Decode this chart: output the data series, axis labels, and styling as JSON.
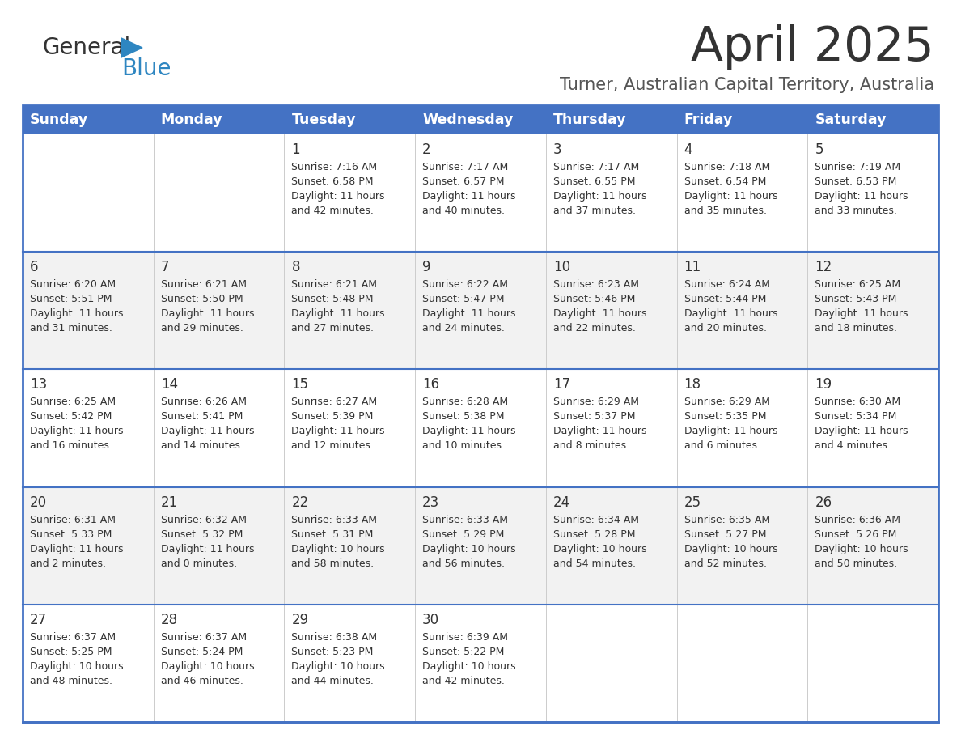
{
  "title": "April 2025",
  "subtitle": "Turner, Australian Capital Territory, Australia",
  "header_color": "#4472C4",
  "header_text_color": "#FFFFFF",
  "row_bg_even": "#FFFFFF",
  "row_bg_odd": "#F2F2F2",
  "border_color": "#4472C4",
  "cell_border_color": "#BBBBBB",
  "days_of_week": [
    "Sunday",
    "Monday",
    "Tuesday",
    "Wednesday",
    "Thursday",
    "Friday",
    "Saturday"
  ],
  "calendar": [
    [
      {
        "day": "",
        "sunrise": "",
        "sunset": "",
        "daylight": ""
      },
      {
        "day": "",
        "sunrise": "",
        "sunset": "",
        "daylight": ""
      },
      {
        "day": "1",
        "sunrise": "Sunrise: 7:16 AM",
        "sunset": "Sunset: 6:58 PM",
        "daylight": "Daylight: 11 hours\nand 42 minutes."
      },
      {
        "day": "2",
        "sunrise": "Sunrise: 7:17 AM",
        "sunset": "Sunset: 6:57 PM",
        "daylight": "Daylight: 11 hours\nand 40 minutes."
      },
      {
        "day": "3",
        "sunrise": "Sunrise: 7:17 AM",
        "sunset": "Sunset: 6:55 PM",
        "daylight": "Daylight: 11 hours\nand 37 minutes."
      },
      {
        "day": "4",
        "sunrise": "Sunrise: 7:18 AM",
        "sunset": "Sunset: 6:54 PM",
        "daylight": "Daylight: 11 hours\nand 35 minutes."
      },
      {
        "day": "5",
        "sunrise": "Sunrise: 7:19 AM",
        "sunset": "Sunset: 6:53 PM",
        "daylight": "Daylight: 11 hours\nand 33 minutes."
      }
    ],
    [
      {
        "day": "6",
        "sunrise": "Sunrise: 6:20 AM",
        "sunset": "Sunset: 5:51 PM",
        "daylight": "Daylight: 11 hours\nand 31 minutes."
      },
      {
        "day": "7",
        "sunrise": "Sunrise: 6:21 AM",
        "sunset": "Sunset: 5:50 PM",
        "daylight": "Daylight: 11 hours\nand 29 minutes."
      },
      {
        "day": "8",
        "sunrise": "Sunrise: 6:21 AM",
        "sunset": "Sunset: 5:48 PM",
        "daylight": "Daylight: 11 hours\nand 27 minutes."
      },
      {
        "day": "9",
        "sunrise": "Sunrise: 6:22 AM",
        "sunset": "Sunset: 5:47 PM",
        "daylight": "Daylight: 11 hours\nand 24 minutes."
      },
      {
        "day": "10",
        "sunrise": "Sunrise: 6:23 AM",
        "sunset": "Sunset: 5:46 PM",
        "daylight": "Daylight: 11 hours\nand 22 minutes."
      },
      {
        "day": "11",
        "sunrise": "Sunrise: 6:24 AM",
        "sunset": "Sunset: 5:44 PM",
        "daylight": "Daylight: 11 hours\nand 20 minutes."
      },
      {
        "day": "12",
        "sunrise": "Sunrise: 6:25 AM",
        "sunset": "Sunset: 5:43 PM",
        "daylight": "Daylight: 11 hours\nand 18 minutes."
      }
    ],
    [
      {
        "day": "13",
        "sunrise": "Sunrise: 6:25 AM",
        "sunset": "Sunset: 5:42 PM",
        "daylight": "Daylight: 11 hours\nand 16 minutes."
      },
      {
        "day": "14",
        "sunrise": "Sunrise: 6:26 AM",
        "sunset": "Sunset: 5:41 PM",
        "daylight": "Daylight: 11 hours\nand 14 minutes."
      },
      {
        "day": "15",
        "sunrise": "Sunrise: 6:27 AM",
        "sunset": "Sunset: 5:39 PM",
        "daylight": "Daylight: 11 hours\nand 12 minutes."
      },
      {
        "day": "16",
        "sunrise": "Sunrise: 6:28 AM",
        "sunset": "Sunset: 5:38 PM",
        "daylight": "Daylight: 11 hours\nand 10 minutes."
      },
      {
        "day": "17",
        "sunrise": "Sunrise: 6:29 AM",
        "sunset": "Sunset: 5:37 PM",
        "daylight": "Daylight: 11 hours\nand 8 minutes."
      },
      {
        "day": "18",
        "sunrise": "Sunrise: 6:29 AM",
        "sunset": "Sunset: 5:35 PM",
        "daylight": "Daylight: 11 hours\nand 6 minutes."
      },
      {
        "day": "19",
        "sunrise": "Sunrise: 6:30 AM",
        "sunset": "Sunset: 5:34 PM",
        "daylight": "Daylight: 11 hours\nand 4 minutes."
      }
    ],
    [
      {
        "day": "20",
        "sunrise": "Sunrise: 6:31 AM",
        "sunset": "Sunset: 5:33 PM",
        "daylight": "Daylight: 11 hours\nand 2 minutes."
      },
      {
        "day": "21",
        "sunrise": "Sunrise: 6:32 AM",
        "sunset": "Sunset: 5:32 PM",
        "daylight": "Daylight: 11 hours\nand 0 minutes."
      },
      {
        "day": "22",
        "sunrise": "Sunrise: 6:33 AM",
        "sunset": "Sunset: 5:31 PM",
        "daylight": "Daylight: 10 hours\nand 58 minutes."
      },
      {
        "day": "23",
        "sunrise": "Sunrise: 6:33 AM",
        "sunset": "Sunset: 5:29 PM",
        "daylight": "Daylight: 10 hours\nand 56 minutes."
      },
      {
        "day": "24",
        "sunrise": "Sunrise: 6:34 AM",
        "sunset": "Sunset: 5:28 PM",
        "daylight": "Daylight: 10 hours\nand 54 minutes."
      },
      {
        "day": "25",
        "sunrise": "Sunrise: 6:35 AM",
        "sunset": "Sunset: 5:27 PM",
        "daylight": "Daylight: 10 hours\nand 52 minutes."
      },
      {
        "day": "26",
        "sunrise": "Sunrise: 6:36 AM",
        "sunset": "Sunset: 5:26 PM",
        "daylight": "Daylight: 10 hours\nand 50 minutes."
      }
    ],
    [
      {
        "day": "27",
        "sunrise": "Sunrise: 6:37 AM",
        "sunset": "Sunset: 5:25 PM",
        "daylight": "Daylight: 10 hours\nand 48 minutes."
      },
      {
        "day": "28",
        "sunrise": "Sunrise: 6:37 AM",
        "sunset": "Sunset: 5:24 PM",
        "daylight": "Daylight: 10 hours\nand 46 minutes."
      },
      {
        "day": "29",
        "sunrise": "Sunrise: 6:38 AM",
        "sunset": "Sunset: 5:23 PM",
        "daylight": "Daylight: 10 hours\nand 44 minutes."
      },
      {
        "day": "30",
        "sunrise": "Sunrise: 6:39 AM",
        "sunset": "Sunset: 5:22 PM",
        "daylight": "Daylight: 10 hours\nand 42 minutes."
      },
      {
        "day": "",
        "sunrise": "",
        "sunset": "",
        "daylight": ""
      },
      {
        "day": "",
        "sunrise": "",
        "sunset": "",
        "daylight": ""
      },
      {
        "day": "",
        "sunrise": "",
        "sunset": "",
        "daylight": ""
      }
    ]
  ]
}
